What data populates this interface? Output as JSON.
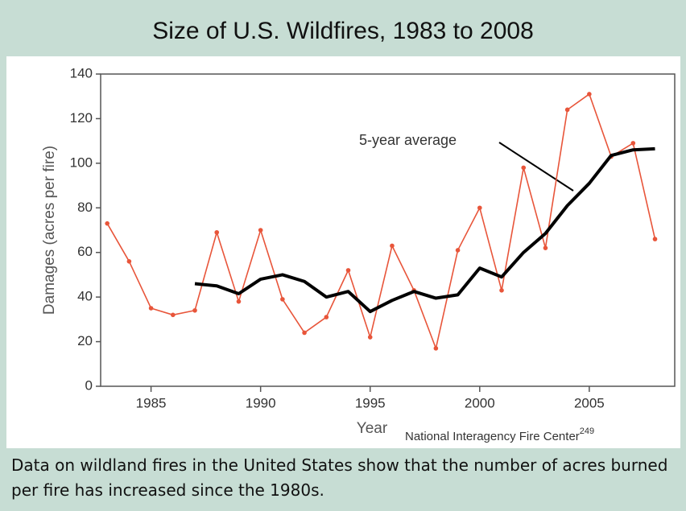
{
  "chart_data": {
    "type": "line",
    "title": "Size of U.S. Wildfires, 1983 to 2008",
    "x_label": "Year",
    "y_label": "Damages (acres per fire)",
    "source": "National Interagency Fire Center",
    "source_note": "249",
    "annotation": "5-year average",
    "x": [
      1983,
      1984,
      1985,
      1986,
      1987,
      1988,
      1989,
      1990,
      1991,
      1992,
      1993,
      1994,
      1995,
      1996,
      1997,
      1998,
      1999,
      2000,
      2001,
      2002,
      2003,
      2004,
      2005,
      2006,
      2007,
      2008
    ],
    "series": [
      {
        "color": "#e8553a",
        "markers": true,
        "values": [
          73,
          56,
          35,
          32,
          34,
          69,
          38,
          70,
          39,
          24,
          31,
          52,
          22,
          63,
          43,
          17,
          61,
          80,
          43,
          98,
          62,
          124,
          131,
          103,
          109,
          66
        ]
      },
      {
        "name": "5-year average",
        "color": "#000000",
        "markers": false,
        "values": [
          null,
          null,
          null,
          null,
          46,
          45,
          41.5,
          48,
          50,
          47,
          40,
          42.5,
          33.5,
          38.5,
          42.5,
          39.5,
          41,
          53,
          49,
          60,
          68.5,
          81,
          91,
          103.5,
          106,
          106.5
        ]
      }
    ],
    "xlim": [
      1982.7,
      2008.9
    ],
    "xticks": [
      1985,
      1990,
      1995,
      2000,
      2005
    ],
    "ylim": [
      0,
      140
    ],
    "yticks": [
      0,
      20,
      40,
      60,
      80,
      100,
      120,
      140
    ],
    "grid": false
  },
  "caption": "Data on wildland fires in the United States show that the number of acres burned per fire has increased since the 1980s."
}
